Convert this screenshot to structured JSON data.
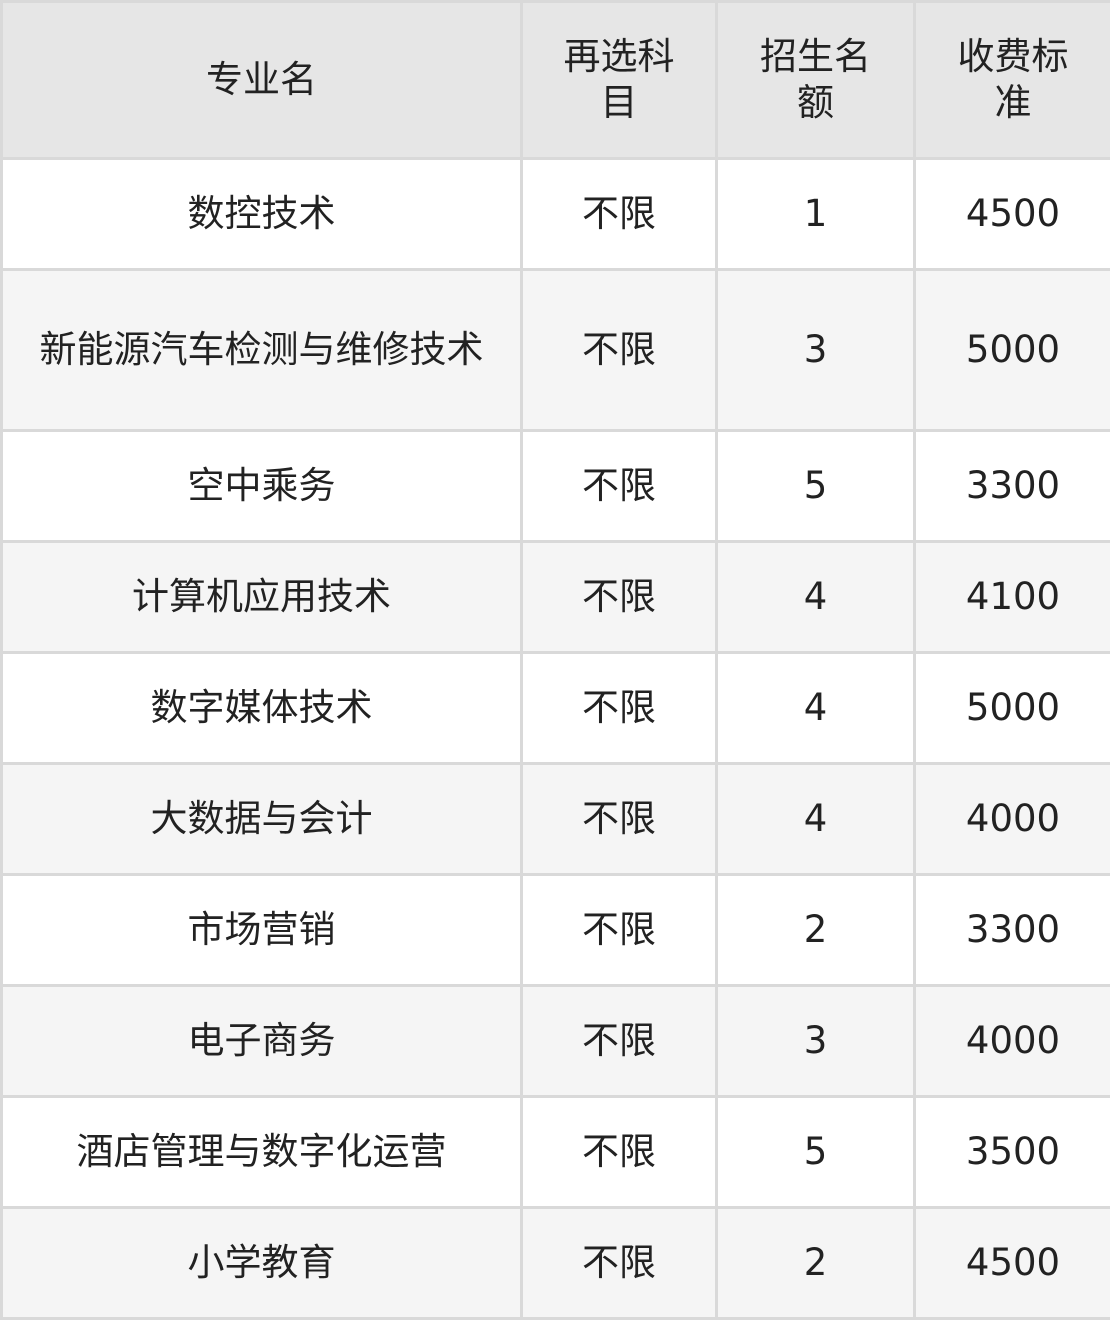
{
  "headers": [
    "专业名",
    "再选科目",
    "招生名额",
    "收费标准"
  ],
  "rows": [
    {
      "major": "数控技术",
      "subject": "不限",
      "quota": "1",
      "fee": "4500"
    },
    {
      "major": "新能源汽车检测与维修技术",
      "subject": "不限",
      "quota": "3",
      "fee": "5000"
    },
    {
      "major": "空中乘务",
      "subject": "不限",
      "quota": "5",
      "fee": "3300"
    },
    {
      "major": "计算机应用技术",
      "subject": "不限",
      "quota": "4",
      "fee": "4100"
    },
    {
      "major": "数字媒体技术",
      "subject": "不限",
      "quota": "4",
      "fee": "5000"
    },
    {
      "major": "大数据与会计",
      "subject": "不限",
      "quota": "4",
      "fee": "4000"
    },
    {
      "major": "市场营销",
      "subject": "不限",
      "quota": "2",
      "fee": "3300"
    },
    {
      "major": "电子商务",
      "subject": "不限",
      "quota": "3",
      "fee": "4000"
    },
    {
      "major": "酒店管理与数字化运营",
      "subject": "不限",
      "quota": "5",
      "fee": "3500"
    },
    {
      "major": "小学教育",
      "subject": "不限",
      "quota": "2",
      "fee": "4500"
    }
  ]
}
